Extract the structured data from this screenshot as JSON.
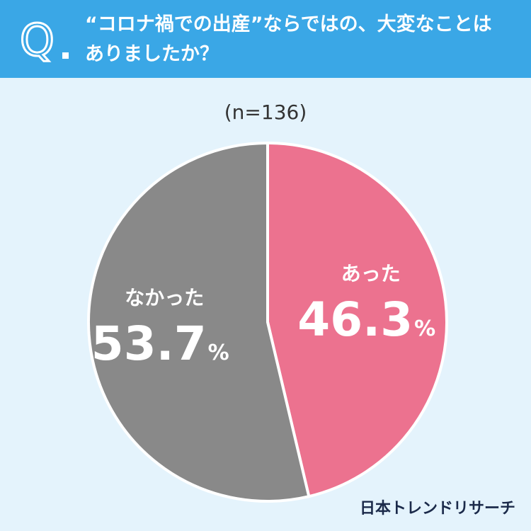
{
  "question": {
    "mark": "Q",
    "text_line1": "“コロナ禍での出産”ならではの、大変なことは",
    "text_line2": "ありましたか？"
  },
  "sample_size": "(n=136)",
  "brand": "日本トレンドリサーチ",
  "colors": {
    "header": "#3aa7e6",
    "background": "#e4f3fc",
    "yes": "#ec728f",
    "no": "#898989"
  },
  "chart_data": {
    "type": "pie",
    "title": "“コロナ禍での出産”ならではの、大変なことはありましたか？",
    "categories": [
      "あった",
      "なかった"
    ],
    "values": [
      46.3,
      53.7
    ],
    "value_labels": [
      "46.3",
      "53.7"
    ],
    "unit": "%",
    "n": 136
  }
}
